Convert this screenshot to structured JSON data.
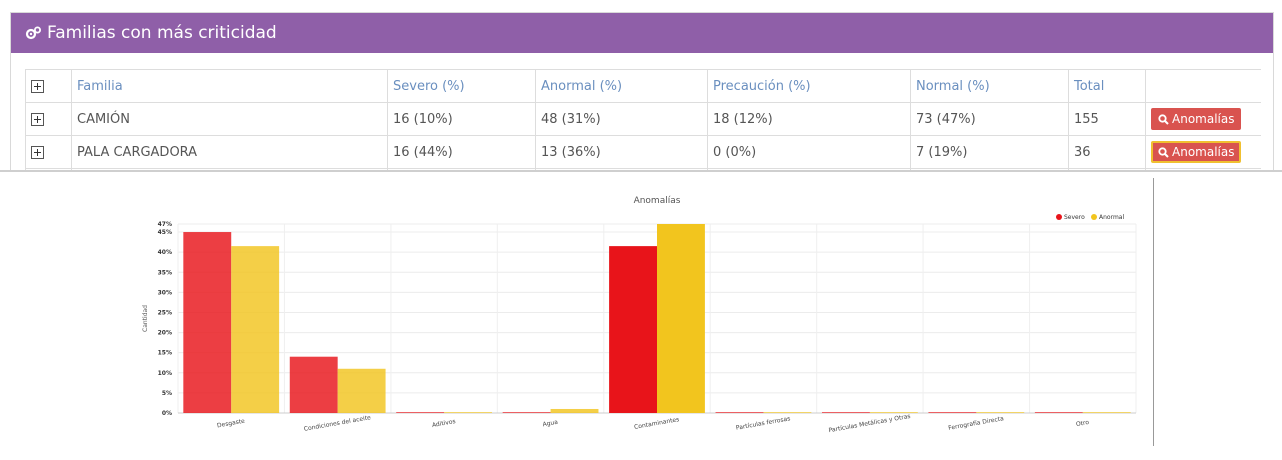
{
  "panel": {
    "title": "Familias con más criticidad",
    "columns": [
      "Familia",
      "Severo (%)",
      "Anormal (%)",
      "Precaución (%)",
      "Normal (%)",
      "Total"
    ],
    "rows": [
      {
        "familia": "CAMIÓN",
        "severo": "16 (10%)",
        "anormal": "48 (31%)",
        "precaucion": "18 (12%)",
        "normal": "73 (47%)",
        "total": "155",
        "button": "Anomalías"
      },
      {
        "familia": "PALA CARGADORA",
        "severo": "16 (44%)",
        "anormal": "13 (36%)",
        "precaucion": "0 (0%)",
        "normal": "7 (19%)",
        "total": "36",
        "button": "Anomalías"
      }
    ]
  },
  "chart_data": {
    "type": "bar",
    "title": "Anomalías",
    "ylabel": "Cantidad",
    "ylim": [
      0,
      47
    ],
    "yticks": [
      "0%",
      "5%",
      "10%",
      "15%",
      "20%",
      "25%",
      "30%",
      "35%",
      "40%",
      "45%",
      "47%"
    ],
    "categories": [
      "Desgaste",
      "Condiciones del aceite",
      "Aditivos",
      "Agua",
      "Contaminantes",
      "Partículas ferrosas",
      "Partículas Metálicas y Otras",
      "Ferrografía Directa",
      "Otro"
    ],
    "series": [
      {
        "name": "Severo",
        "color": "#e8141a",
        "values": [
          45,
          14,
          0,
          0,
          41.5,
          0,
          0,
          0,
          0
        ]
      },
      {
        "name": "Anormal",
        "color": "#f2c51e",
        "values": [
          41.5,
          11,
          0,
          1,
          47,
          0,
          0,
          0,
          0
        ]
      }
    ],
    "legend": "top-right",
    "grid": true
  }
}
